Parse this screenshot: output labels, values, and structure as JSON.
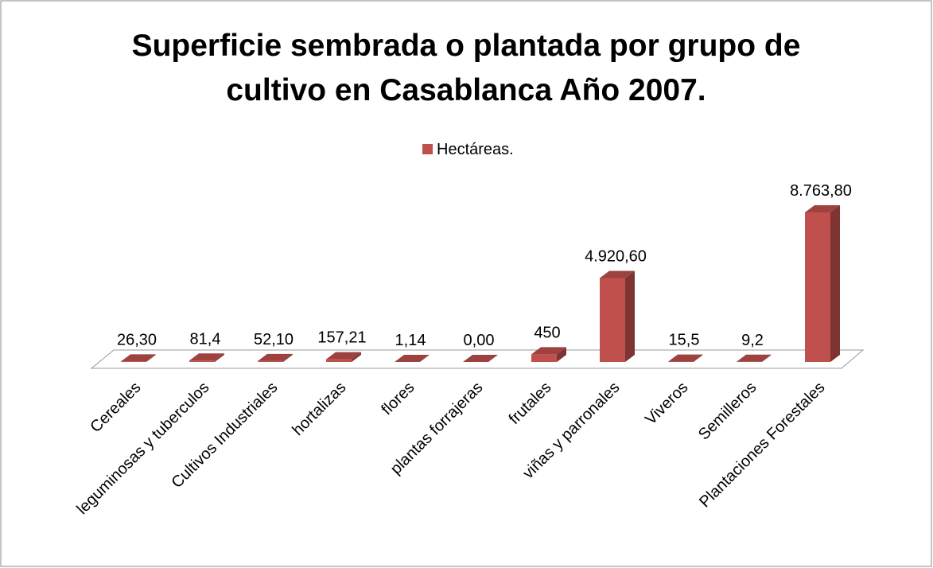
{
  "chart_data": {
    "type": "bar3d",
    "title": "Superficie sembrada o plantada por grupo de cultivo en Casablanca Año 2007.",
    "categories": [
      "Cereales",
      "leguminosas y tuberculos",
      "Cultivos Industriales",
      "hortalizas",
      "flores",
      "plantas forrajeras",
      "frutales",
      "viñas y parronales",
      "Viveros",
      "Semilleros",
      "Plantaciones Forestales"
    ],
    "series": [
      {
        "name": "Hectáreas.",
        "color": "#c0504d",
        "values": [
          26.3,
          81.4,
          52.1,
          157.21,
          1.14,
          0,
          450,
          4920.6,
          15.5,
          9.2,
          8763.8
        ],
        "value_labels": [
          "26,30",
          "81,4",
          "52,10",
          "157,21",
          "1,14",
          "0,00",
          "450",
          "4.920,60",
          "15,5",
          "9,2",
          "8.763,80"
        ]
      }
    ],
    "legend": "top"
  }
}
